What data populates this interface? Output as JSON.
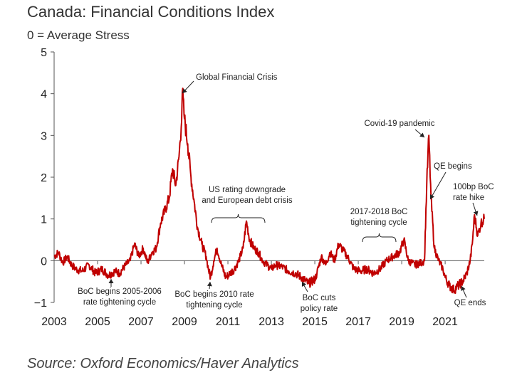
{
  "chart_data": {
    "type": "line",
    "title": "Canada: Financial Conditions Index",
    "subtitle": "0 = Average Stress",
    "source": "Source: Oxford Economics/Haver Analytics",
    "xlabel": "",
    "ylabel": "",
    "xlim": [
      2003,
      2022.8
    ],
    "ylim": [
      -1,
      5
    ],
    "y_ticks": [
      -1,
      0,
      1,
      2,
      3,
      4,
      5
    ],
    "y_tick_labels": [
      "−1",
      "0",
      "1",
      "2",
      "3",
      "4",
      "5"
    ],
    "x_ticks": [
      2003,
      2005,
      2007,
      2009,
      2011,
      2013,
      2015,
      2017,
      2019,
      2021
    ],
    "x_tick_labels": [
      "2003",
      "2005",
      "2007",
      "2009",
      "2011",
      "2013",
      "2015",
      "2017",
      "2019",
      "2021"
    ],
    "grid": false,
    "series": [
      {
        "color": "#c00000",
        "x": [
          2003.0,
          2003.2,
          2003.4,
          2003.6,
          2003.8,
          2004.0,
          2004.3,
          2004.6,
          2004.9,
          2005.2,
          2005.5,
          2005.8,
          2006.0,
          2006.3,
          2006.5,
          2006.7,
          2006.9,
          2007.1,
          2007.3,
          2007.5,
          2007.7,
          2007.9,
          2008.1,
          2008.3,
          2008.45,
          2008.6,
          2008.75,
          2008.85,
          2008.9,
          2009.0,
          2009.15,
          2009.3,
          2009.45,
          2009.6,
          2009.8,
          2010.0,
          2010.1,
          2010.2,
          2010.35,
          2010.5,
          2010.7,
          2010.9,
          2011.1,
          2011.3,
          2011.5,
          2011.7,
          2011.85,
          2012.0,
          2012.2,
          2012.4,
          2012.6,
          2012.8,
          2013.0,
          2013.2,
          2013.5,
          2013.8,
          2014.1,
          2014.4,
          2014.7,
          2015.0,
          2015.1,
          2015.3,
          2015.5,
          2015.7,
          2015.9,
          2016.1,
          2016.3,
          2016.5,
          2016.8,
          2017.1,
          2017.4,
          2017.7,
          2018.0,
          2018.3,
          2018.6,
          2018.9,
          2019.1,
          2019.3,
          2019.6,
          2019.9,
          2020.05,
          2020.15,
          2020.25,
          2020.35,
          2020.5,
          2020.7,
          2020.9,
          2021.0,
          2021.2,
          2021.4,
          2021.6,
          2021.8,
          2022.0,
          2022.15,
          2022.25,
          2022.35,
          2022.5,
          2022.65,
          2022.8
        ],
        "values": [
          0.1,
          0.2,
          -0.05,
          0.1,
          -0.1,
          -0.2,
          -0.25,
          -0.1,
          -0.3,
          -0.2,
          -0.35,
          -0.25,
          -0.3,
          -0.1,
          0.0,
          0.4,
          0.1,
          0.3,
          -0.05,
          0.2,
          0.3,
          0.9,
          1.2,
          1.5,
          2.2,
          1.8,
          2.5,
          3.2,
          4.05,
          3.4,
          2.8,
          2.0,
          1.4,
          0.8,
          0.4,
          0.1,
          -0.2,
          -0.4,
          0.0,
          0.3,
          -0.1,
          -0.4,
          -0.3,
          -0.2,
          0.0,
          0.3,
          0.95,
          0.5,
          0.3,
          0.2,
          0.0,
          -0.1,
          -0.2,
          -0.1,
          -0.15,
          -0.25,
          -0.3,
          -0.4,
          -0.55,
          -0.45,
          -0.3,
          0.1,
          -0.1,
          0.2,
          0.0,
          0.4,
          0.25,
          0.1,
          -0.2,
          -0.25,
          -0.2,
          -0.3,
          -0.2,
          0.0,
          0.1,
          0.2,
          0.5,
          0.0,
          -0.1,
          -0.05,
          0.0,
          1.8,
          3.0,
          1.5,
          0.3,
          0.0,
          -0.2,
          -0.4,
          -0.6,
          -0.7,
          -0.6,
          -0.5,
          -0.3,
          0.0,
          0.4,
          1.1,
          0.6,
          0.9,
          1.0
        ]
      }
    ],
    "annotations": [
      {
        "lines": [
          "Global Financial Crisis"
        ]
      },
      {
        "lines": [
          "US rating downgrade",
          "and European debt crisis"
        ]
      },
      {
        "lines": [
          "Covid-19 pandemic"
        ]
      },
      {
        "lines": [
          "QE begins"
        ]
      },
      {
        "lines": [
          "100bp BoC",
          "rate hike"
        ]
      },
      {
        "lines": [
          "2017-2018 BoC",
          "tightening cycle"
        ]
      },
      {
        "lines": [
          "BoC begins 2005-2006",
          "rate tightening cycle"
        ]
      },
      {
        "lines": [
          "BoC begins 2010 rate",
          "tightening cycle"
        ]
      },
      {
        "lines": [
          "BoC cuts",
          "policy rate"
        ]
      },
      {
        "lines": [
          "QE ends"
        ]
      }
    ]
  }
}
